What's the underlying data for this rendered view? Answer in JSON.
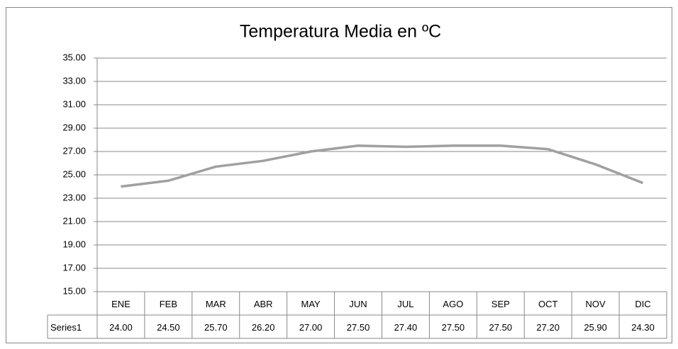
{
  "chart_data": {
    "type": "line",
    "title": "Temperatura Media en ºC",
    "categories": [
      "ENE",
      "FEB",
      "MAR",
      "ABR",
      "MAY",
      "JUN",
      "JUL",
      "AGO",
      "SEP",
      "OCT",
      "NOV",
      "DIC"
    ],
    "series": [
      {
        "name": "Series1",
        "color": "#a0a0a0",
        "values": [
          24,
          24.5,
          25.7,
          26.2,
          27,
          27.5,
          27.4,
          27.5,
          27.5,
          27.2,
          25.9,
          24.3
        ],
        "value_labels": [
          "24.00",
          "24.50",
          "25.70",
          "26.20",
          "27.00",
          "27.50",
          "27.40",
          "27.50",
          "27.50",
          "27.20",
          "25.90",
          "24.30"
        ]
      }
    ],
    "ylim": [
      15,
      35
    ],
    "yticks": [
      {
        "value": 15,
        "label": "15.00"
      },
      {
        "value": 17,
        "label": "17.00"
      },
      {
        "value": 19,
        "label": "19.00"
      },
      {
        "value": 21,
        "label": "21.00"
      },
      {
        "value": 23,
        "label": "23.00"
      },
      {
        "value": 25,
        "label": "25.00"
      },
      {
        "value": 27,
        "label": "27.00"
      },
      {
        "value": 29,
        "label": "29.00"
      },
      {
        "value": 31,
        "label": "31.00"
      },
      {
        "value": 33,
        "label": "33.00"
      },
      {
        "value": 35,
        "label": "35.00"
      }
    ],
    "grid": true
  }
}
